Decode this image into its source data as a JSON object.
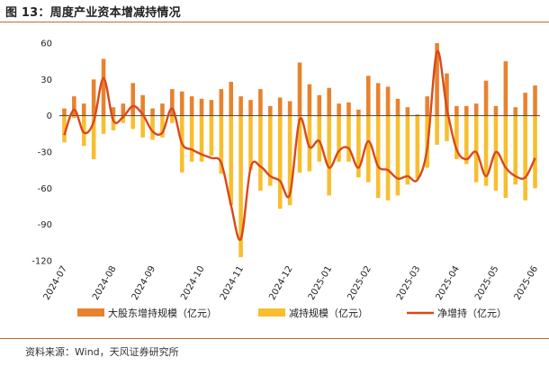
{
  "title": "图 13：周度产业资本增减持情况",
  "source": "资料来源：Wind，天风证券研究所",
  "colors": {
    "increase": "#e8822c",
    "decrease": "#f7bf2e",
    "net": "#d9481c",
    "rule": "#c46a2a",
    "axis": "#444444"
  },
  "chart_data": {
    "type": "bar",
    "title": "",
    "ylim": [
      -120,
      60
    ],
    "yticks": [
      60,
      30,
      0,
      -30,
      -60,
      -90,
      -120
    ],
    "xtick_labels": [
      "2024-07",
      "2024-08",
      "2024-09",
      "2024-10",
      "2024-11",
      "2024-12",
      "2025-01",
      "2025-02",
      "2025-03",
      "2025-04",
      "2025-05",
      "2025-06"
    ],
    "xtick_week_index": [
      0,
      5,
      9,
      14,
      18,
      23,
      27,
      31,
      36,
      40,
      44,
      48
    ],
    "legend": {
      "position": "bottom",
      "entries": [
        "大股东增持规模（亿元）",
        "减持规模（亿元）",
        "净增持（亿元）"
      ]
    },
    "series": [
      {
        "name": "大股东增持规模（亿元）",
        "kind": "bar",
        "values": [
          6,
          16,
          10,
          30,
          47,
          7,
          10,
          27,
          17,
          6,
          10,
          22,
          20,
          16,
          14,
          13,
          22,
          28,
          16,
          13,
          22,
          8,
          15,
          12,
          44,
          26,
          17,
          23,
          10,
          11,
          5,
          33,
          27,
          24,
          14,
          7,
          1,
          16,
          60,
          35,
          8,
          8,
          10,
          29,
          8,
          45,
          7,
          19,
          25
        ]
      },
      {
        "name": "减持规模（亿元）",
        "kind": "bar",
        "values": [
          -22,
          -2,
          -25,
          -36,
          -15,
          -12,
          -6,
          -11,
          -18,
          -20,
          -18,
          -6,
          -47,
          -38,
          -38,
          -33,
          -48,
          -74,
          -117,
          -45,
          -62,
          -58,
          -77,
          -74,
          -47,
          -46,
          -38,
          -66,
          -38,
          -38,
          -51,
          -55,
          -68,
          -70,
          -66,
          -57,
          -52,
          -43,
          -24,
          -21,
          -36,
          -40,
          -55,
          -58,
          -62,
          -68,
          -57,
          -70,
          -60
        ]
      },
      {
        "name": "净增持（亿元）",
        "kind": "line",
        "values": [
          -16,
          5,
          -14,
          -5,
          31,
          -4,
          -1,
          8,
          1,
          -13,
          -14,
          6,
          -23,
          -28,
          -32,
          -35,
          -39,
          -74,
          -102,
          -43,
          -42,
          -50,
          -54,
          -65,
          -3,
          -26,
          -21,
          -43,
          -29,
          -27,
          -43,
          -21,
          -42,
          -45,
          -52,
          -50,
          -53,
          -27,
          53,
          6,
          -28,
          -36,
          -30,
          -50,
          -30,
          -43,
          -50,
          -51,
          -35
        ]
      }
    ]
  }
}
